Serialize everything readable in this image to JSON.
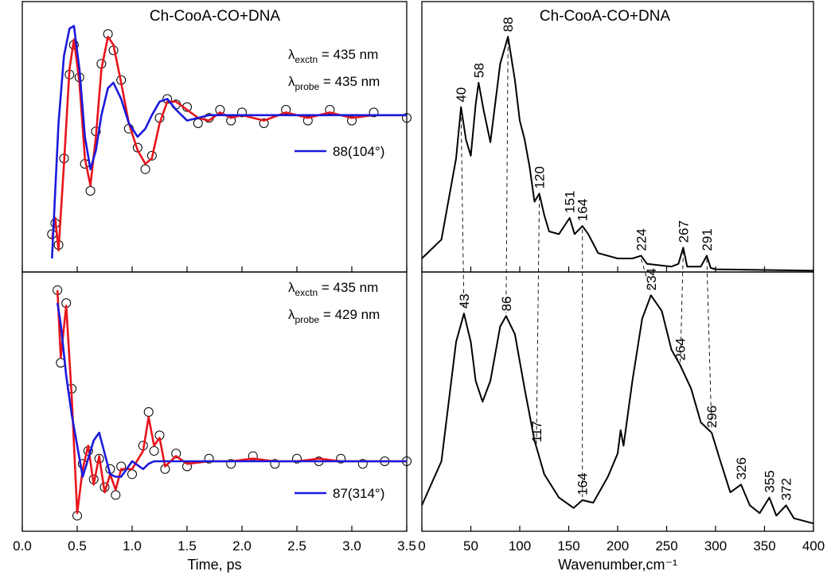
{
  "chart_data": [
    {
      "type": "line",
      "xlim": [
        0,
        3.5
      ],
      "xticks": [
        {
          "value": 0,
          "label": "0.0"
        },
        {
          "value": 0.5,
          "label": "0.5"
        },
        {
          "value": 1,
          "label": "1.0"
        },
        {
          "value": 1.5,
          "label": "1.5"
        },
        {
          "value": 2,
          "label": "2.0"
        },
        {
          "value": 2.5,
          "label": "2.5"
        },
        {
          "value": 3,
          "label": "3.0"
        },
        {
          "value": 3.5,
          "label": "3.5"
        }
      ],
      "x_label": "Time, ps",
      "panels": [
        {
          "title": "Ch-CooA-CO+DNA",
          "ylim": [
            0,
            100
          ],
          "lambdas": [
            {
              "symbol": "λ",
              "sub": "exctn",
              "text": " = 435 nm"
            },
            {
              "symbol": "λ",
              "sub": "probe",
              "text": " = 435 nm"
            }
          ],
          "x": [
            0.27,
            0.3,
            0.33,
            0.38,
            0.43,
            0.47,
            0.52,
            0.57,
            0.62,
            0.67,
            0.72,
            0.78,
            0.83,
            0.9,
            0.97,
            1.05,
            1.12,
            1.18,
            1.25,
            1.32,
            1.4,
            1.5,
            1.6,
            1.7,
            1.8,
            1.9,
            2.0,
            2.2,
            2.4,
            2.6,
            2.8,
            3.0,
            3.2,
            3.5
          ],
          "series": [
            {
              "marker": "circle",
              "color": "#000000",
              "values": [
                14,
                18,
                10,
                42,
                73,
                84,
                72,
                40,
                30,
                52,
                77,
                88,
                82,
                71,
                53,
                46,
                38,
                43,
                57,
                64,
                62,
                61,
                55,
                57,
                60,
                56,
                59,
                55,
                60,
                56,
                60,
                56,
                59,
                57
              ]
            },
            {
              "color": "#e8141b",
              "values": [
                12,
                20,
                8,
                40,
                75,
                86,
                70,
                42,
                32,
                50,
                75,
                87,
                84,
                70,
                55,
                45,
                40,
                42,
                55,
                63,
                63,
                60,
                57,
                56,
                59,
                57,
                58,
                56,
                59,
                57,
                59,
                57,
                58,
                58
              ]
            },
            {
              "name": "88(104°)",
              "color": "#1a1adb",
              "values": [
                5,
                30,
                55,
                80,
                90,
                91,
                75,
                50,
                38,
                45,
                58,
                68,
                70,
                64,
                55,
                50,
                53,
                58,
                63,
                64,
                60,
                56,
                57,
                58,
                58,
                58,
                58,
                58,
                58,
                58,
                58,
                58,
                58,
                58
              ]
            }
          ]
        },
        {
          "ylim": [
            0,
            100
          ],
          "lambdas": [
            {
              "symbol": "λ",
              "sub": "exctn",
              "text": " = 435 nm"
            },
            {
              "symbol": "λ",
              "sub": "probe",
              "text": " = 429 nm"
            }
          ],
          "x": [
            0.32,
            0.35,
            0.4,
            0.45,
            0.5,
            0.55,
            0.6,
            0.65,
            0.7,
            0.75,
            0.8,
            0.85,
            0.9,
            1.0,
            1.1,
            1.15,
            1.2,
            1.25,
            1.3,
            1.4,
            1.5,
            1.7,
            1.9,
            2.1,
            2.3,
            2.5,
            2.7,
            2.9,
            3.1,
            3.3,
            3.5
          ],
          "series": [
            {
              "marker": "circle",
              "color": "#000000",
              "values": [
                93,
                65,
                88,
                55,
                6,
                26,
                31,
                20,
                28,
                17,
                24,
                14,
                25,
                22,
                33,
                46,
                31,
                37,
                24,
                30,
                25,
                28,
                26,
                29,
                26,
                28,
                27,
                28,
                26,
                27,
                27
              ]
            },
            {
              "color": "#e8141b",
              "values": [
                93,
                67,
                87,
                52,
                7,
                24,
                33,
                18,
                29,
                15,
                22,
                16,
                24,
                24,
                31,
                44,
                33,
                36,
                25,
                29,
                26,
                27,
                27,
                28,
                27,
                27,
                28,
                27,
                27,
                27,
                27
              ]
            },
            {
              "name": "87(314°)",
              "color": "#1a1adb",
              "values": [
                88,
                80,
                60,
                45,
                33,
                21,
                28,
                35,
                38,
                30,
                22,
                21,
                21,
                27,
                24,
                26,
                27,
                27,
                27,
                27,
                27,
                27,
                27,
                27,
                27,
                27,
                27,
                27,
                27,
                27,
                27
              ]
            }
          ]
        }
      ]
    },
    {
      "type": "line",
      "xlim": [
        0,
        400
      ],
      "xticks": [
        0,
        50,
        100,
        150,
        200,
        250,
        300,
        350,
        400
      ],
      "x_label": "Wavenumber,cm⁻¹",
      "panels": [
        {
          "title": "Ch-CooA-CO+DNA",
          "ylim": [
            0,
            100
          ],
          "x": [
            0,
            20,
            35,
            40,
            45,
            50,
            55,
            58,
            63,
            70,
            80,
            88,
            95,
            100,
            105,
            110,
            115,
            120,
            125,
            130,
            140,
            151,
            156,
            164,
            170,
            180,
            200,
            215,
            224,
            230,
            255,
            262,
            267,
            271,
            285,
            291,
            295,
            300,
            400
          ],
          "series": [
            {
              "color": "#000000",
              "values": [
                5,
                12,
                42,
                61,
                49,
                43,
                62,
                70,
                60,
                48,
                77,
                87,
                71,
                56,
                49,
                39,
                26,
                29,
                21,
                15,
                14,
                20,
                14,
                17,
                14,
                7,
                5,
                5,
                6,
                3,
                2,
                3,
                9,
                2,
                2,
                6,
                1.5,
                1,
                0.5
              ]
            }
          ],
          "peaks": [
            40,
            58,
            88,
            120,
            151,
            164,
            224,
            267,
            291
          ]
        },
        {
          "ylim": [
            0,
            100
          ],
          "x": [
            0,
            20,
            35,
            43,
            50,
            55,
            62,
            70,
            80,
            86,
            95,
            105,
            115,
            125,
            140,
            155,
            164,
            175,
            190,
            200,
            203,
            206,
            215,
            225,
            234,
            245,
            255,
            264,
            275,
            285,
            296,
            305,
            315,
            326,
            335,
            345,
            355,
            362,
            372,
            380,
            400
          ],
          "series": [
            {
              "color": "#000000",
              "values": [
                10,
                27,
                73,
                84,
                73,
                58,
                50,
                58,
                79,
                83,
                76,
                55,
                35,
                22,
                13,
                9,
                12,
                11,
                21,
                30,
                39,
                33,
                58,
                82,
                91,
                85,
                70,
                64,
                55,
                42,
                38,
                27,
                15,
                18,
                10,
                7,
                13,
                6,
                10,
                5,
                3
              ]
            }
          ],
          "peaks": [
            43,
            86,
            117,
            164,
            234,
            264,
            296,
            326,
            355,
            372
          ]
        }
      ]
    }
  ]
}
